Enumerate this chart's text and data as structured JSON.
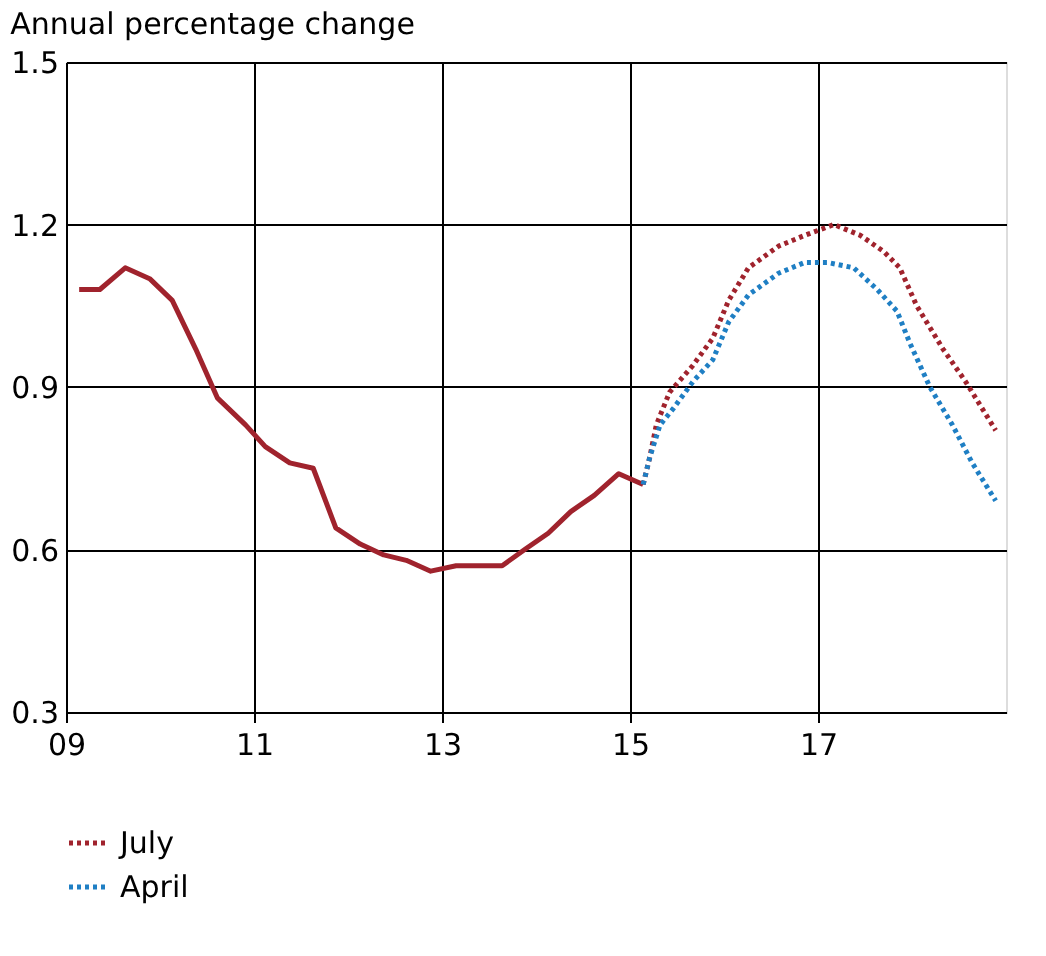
{
  "chart_data": {
    "type": "line",
    "title": "Annual percentage change",
    "xlim": [
      9,
      19
    ],
    "xticks": [
      {
        "value": 9,
        "label": "09"
      },
      {
        "value": 11,
        "label": "11"
      },
      {
        "value": 13,
        "label": "13"
      },
      {
        "value": 15,
        "label": "15"
      },
      {
        "value": 17,
        "label": "17"
      }
    ],
    "ylim": [
      0.3,
      1.5
    ],
    "yticks": [
      0.3,
      0.6,
      0.9,
      1.2,
      1.5
    ],
    "grid": true,
    "legend": "bottom",
    "series": [
      {
        "color": "#a0232d",
        "line_style": "solid",
        "x": [
          9.14,
          9.36,
          9.63,
          9.89,
          10.13,
          10.38,
          10.61,
          10.91,
          11.12,
          11.38,
          11.63,
          11.87,
          12.13,
          12.38,
          12.62,
          12.88,
          13.15,
          13.39,
          13.64,
          13.88,
          14.13,
          14.37,
          14.62,
          14.88,
          15.14
        ],
        "values": [
          1.08,
          1.08,
          1.12,
          1.1,
          1.06,
          0.97,
          0.88,
          0.83,
          0.79,
          0.76,
          0.75,
          0.64,
          0.61,
          0.59,
          0.58,
          0.56,
          0.57,
          0.57,
          0.57,
          0.6,
          0.63,
          0.67,
          0.7,
          0.74,
          0.72
        ]
      },
      {
        "name": "July",
        "color": "#a0232d",
        "line_style": "dotted",
        "x": [
          15.14,
          15.21,
          15.28,
          15.42,
          15.67,
          15.88,
          16.05,
          16.26,
          16.58,
          16.86,
          17.17,
          17.45,
          17.7,
          17.87,
          18.05,
          18.33,
          18.57,
          18.89
        ],
        "values": [
          0.72,
          0.77,
          0.83,
          0.89,
          0.94,
          0.99,
          1.06,
          1.12,
          1.16,
          1.18,
          1.2,
          1.18,
          1.15,
          1.12,
          1.05,
          0.97,
          0.91,
          0.82
        ]
      },
      {
        "name": "April",
        "color": "#1f7fc4",
        "line_style": "dotted",
        "x": [
          15.14,
          15.21,
          15.32,
          15.46,
          15.67,
          15.88,
          16.05,
          16.26,
          16.58,
          16.86,
          17.1,
          17.38,
          17.63,
          17.84,
          17.98,
          18.19,
          18.43,
          18.64,
          18.89
        ],
        "values": [
          0.72,
          0.77,
          0.83,
          0.86,
          0.91,
          0.95,
          1.02,
          1.07,
          1.11,
          1.13,
          1.13,
          1.12,
          1.08,
          1.04,
          0.98,
          0.9,
          0.83,
          0.76,
          0.69
        ]
      }
    ]
  }
}
